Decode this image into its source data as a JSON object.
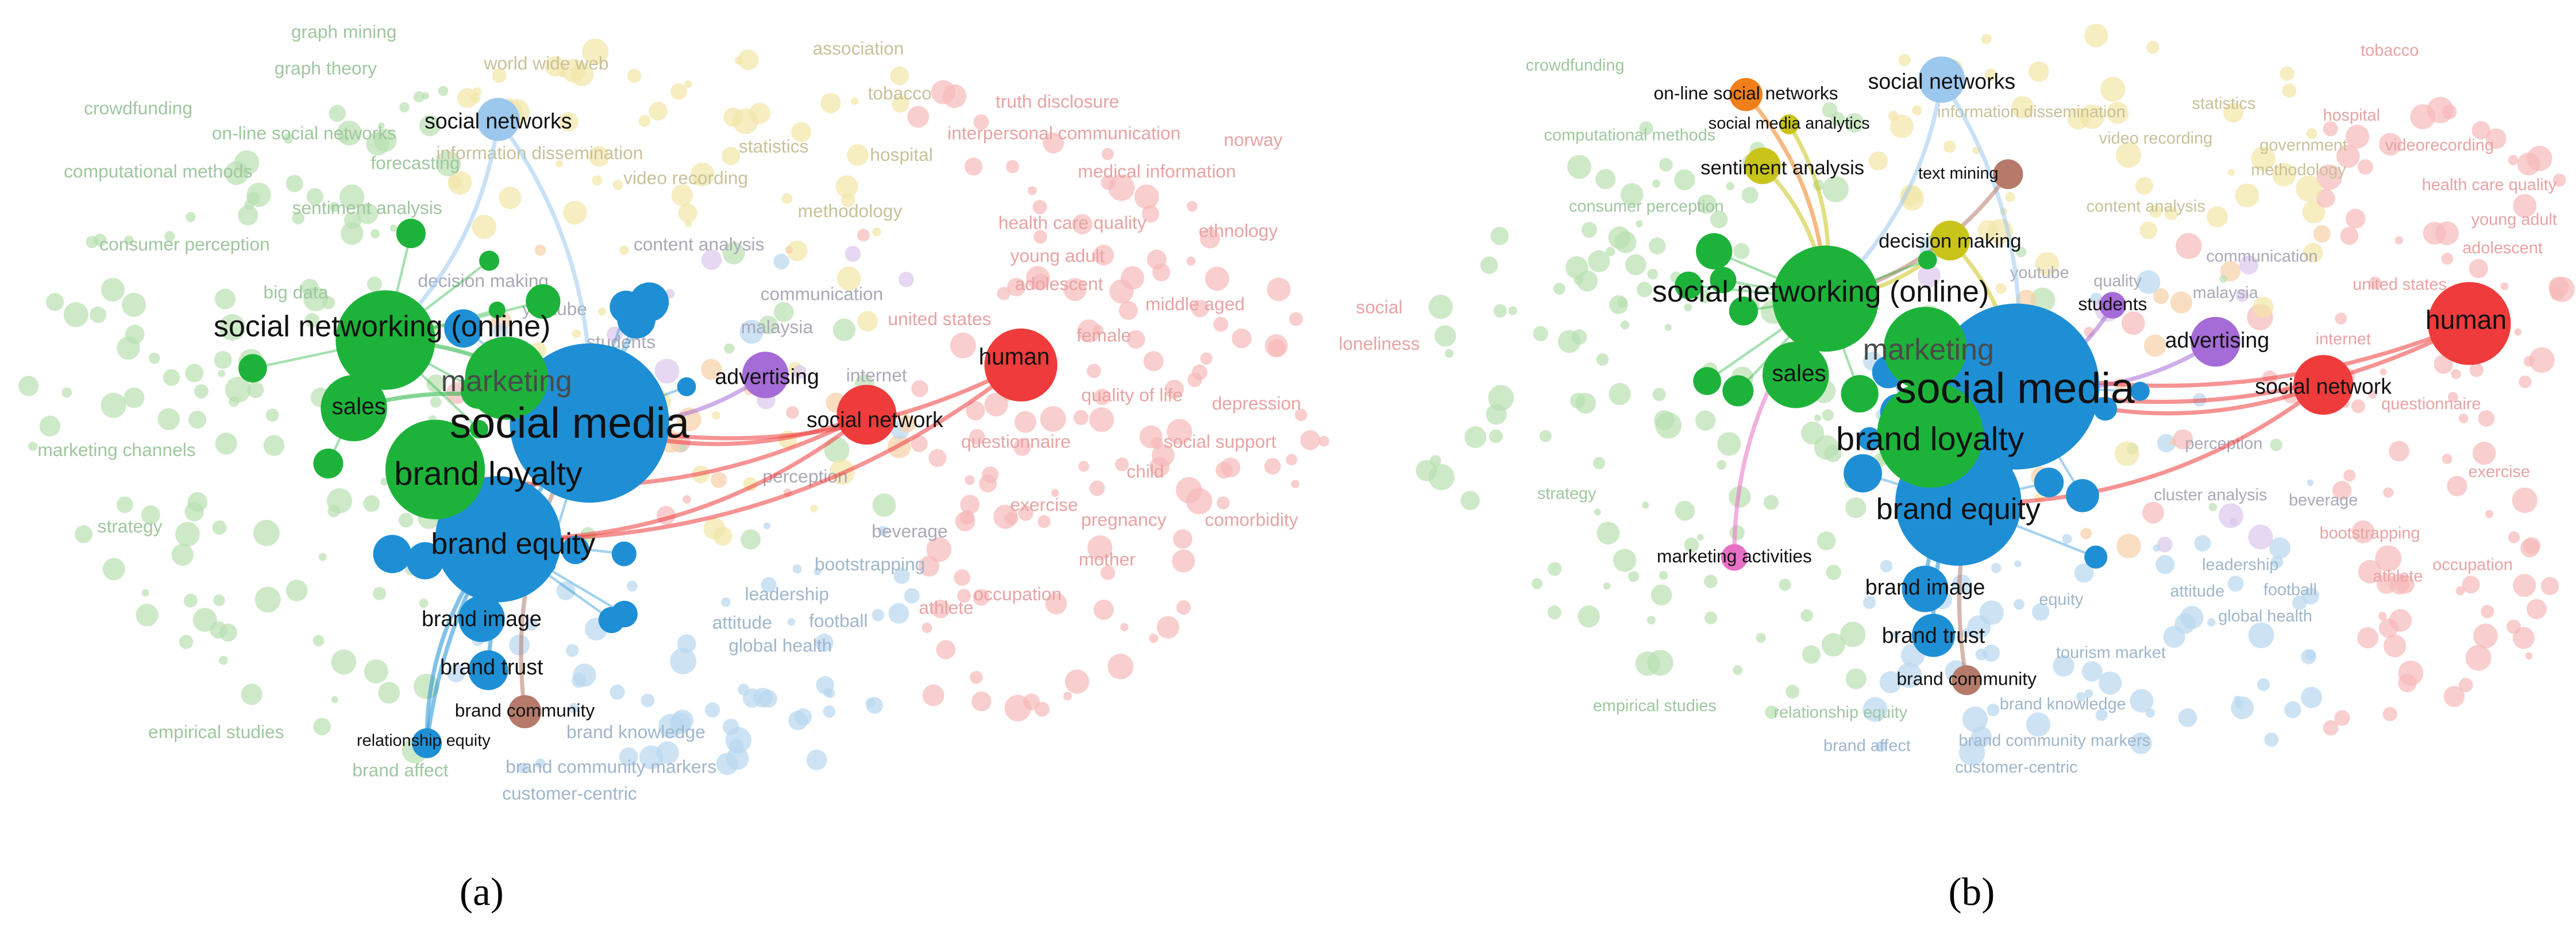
{
  "panels": [
    {
      "caption": "(a)",
      "nodes": [
        {
          "label": "social media",
          "color": "#1e8fd5"
        },
        {
          "label": "brand equity",
          "color": "#1e8fd5"
        },
        {
          "label": "brand loyalty",
          "color": "#1db33a"
        },
        {
          "label": "marketing",
          "color": "#1db33a"
        },
        {
          "label": "social networking (online)",
          "color": "#1db33a"
        },
        {
          "label": "sales",
          "color": "#1db33a"
        },
        {
          "label": "human",
          "color": "#ef3b3b"
        },
        {
          "label": "social network",
          "color": "#ef3b3b"
        },
        {
          "label": "advertising",
          "color": "#a56bd6"
        },
        {
          "label": "brand image",
          "color": "#1e8fd5"
        },
        {
          "label": "brand trust",
          "color": "#1e8fd5"
        },
        {
          "label": "brand community",
          "color": "#b57a6a"
        },
        {
          "label": "relationship equity",
          "color": "#1e8fd5"
        },
        {
          "label": "social networks",
          "color": "#9cc8ee"
        }
      ],
      "background_terms": [
        "graph mining",
        "graph theory",
        "world wide web",
        "crowdfunding",
        "on-line social networks",
        "forecasting",
        "information dissemination",
        "video recording",
        "computational methods",
        "sentiment analysis",
        "consumer perception",
        "decision making",
        "content analysis",
        "communication",
        "big data",
        "marketing channels",
        "strategy",
        "perception",
        "questionnaire",
        "quality of life",
        "depression",
        "social support",
        "adolescent",
        "female",
        "middle aged",
        "united states",
        "young adult",
        "health care quality",
        "medical information",
        "interpersonal communication",
        "truth disclosure",
        "hospital",
        "association",
        "tobacco",
        "statistics",
        "methodology",
        "norway",
        "ethnology",
        "social",
        "loneliness",
        "internet",
        "students",
        "pregnancy",
        "comorbidity",
        "child",
        "exercise",
        "bootstrapping",
        "occupation",
        "leadership",
        "football",
        "athlete",
        "empirical studies",
        "brand affect",
        "brand community markers",
        "customer-centric",
        "youtube",
        "malaysia",
        "brand knowledge",
        "global health",
        "attitude",
        "mother",
        "beverage"
      ]
    },
    {
      "caption": "(b)",
      "nodes": [
        {
          "label": "social media",
          "color": "#1e8fd5"
        },
        {
          "label": "brand equity",
          "color": "#1e8fd5"
        },
        {
          "label": "brand loyalty",
          "color": "#1db33a"
        },
        {
          "label": "marketing",
          "color": "#1db33a"
        },
        {
          "label": "social networking (online)",
          "color": "#1db33a"
        },
        {
          "label": "sales",
          "color": "#1db33a"
        },
        {
          "label": "human",
          "color": "#ef3b3b"
        },
        {
          "label": "social network",
          "color": "#ef3b3b"
        },
        {
          "label": "advertising",
          "color": "#a56bd6"
        },
        {
          "label": "brand image",
          "color": "#1e8fd5"
        },
        {
          "label": "brand trust",
          "color": "#1e8fd5"
        },
        {
          "label": "brand community",
          "color": "#b57a6a"
        },
        {
          "label": "students",
          "color": "#a56bd6"
        },
        {
          "label": "social networks",
          "color": "#9cc8ee"
        },
        {
          "label": "sentiment analysis",
          "color": "#c9c41a"
        },
        {
          "label": "text mining",
          "color": "#b57a6a"
        },
        {
          "label": "on-line social networks",
          "color": "#f07f1a"
        },
        {
          "label": "decision making",
          "color": "#c9c41a"
        },
        {
          "label": "marketing activities",
          "color": "#e86fc6"
        },
        {
          "label": "social media analytics",
          "color": "#c9c41a"
        }
      ],
      "background_terms": [
        "crowdfunding",
        "information dissemination",
        "video recording",
        "statistics",
        "hospital",
        "government",
        "methodology",
        "tobacco",
        "computational methods",
        "consumer perception",
        "content analysis",
        "communication",
        "malaysia",
        "united states",
        "adolescent",
        "young adult",
        "health care quality",
        "videorecording",
        "perception",
        "questionnaire",
        "internet",
        "cluster analysis",
        "beverage",
        "bootstrapping",
        "exercise",
        "leadership",
        "football",
        "athlete",
        "occupation",
        "global health",
        "attitude",
        "equity",
        "tourism market",
        "brand knowledge",
        "brand community markers",
        "customer-centric",
        "brand affect",
        "relationship equity",
        "empirical studies",
        "strategy",
        "youtube",
        "quality"
      ]
    }
  ]
}
